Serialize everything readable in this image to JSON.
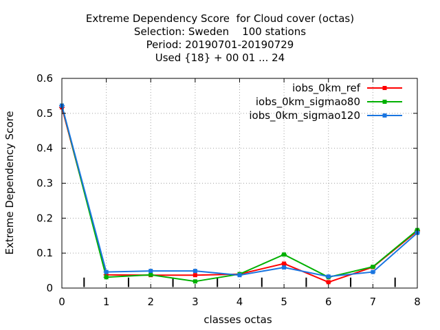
{
  "chart_data": {
    "type": "line",
    "title_lines": [
      "Extreme Dependency Score  for Cloud cover (octas)",
      "Selection: Sweden    100 stations",
      "Period: 20190701-20190729",
      "Used {18} + 00 01 ... 24"
    ],
    "xlabel": "classes octas",
    "ylabel": "Extreme Dependency Score",
    "xlim": [
      0,
      8
    ],
    "ylim": [
      0,
      0.6
    ],
    "xticks": [
      "0",
      "1",
      "2",
      "3",
      "4",
      "5",
      "6",
      "7",
      "8"
    ],
    "yticks": [
      "0",
      "0.1",
      "0.2",
      "0.3",
      "0.4",
      "0.5",
      "0.6"
    ],
    "grid": true,
    "legend_position": "top-right",
    "x": [
      0,
      1,
      2,
      3,
      4,
      5,
      6,
      7,
      8
    ],
    "series": [
      {
        "name": "iobs_0km_ref",
        "color": "#ff0000",
        "values": [
          0.517,
          0.038,
          0.037,
          0.037,
          0.04,
          0.07,
          0.017,
          0.06,
          0.163
        ]
      },
      {
        "name": "iobs_0km_sigmao80",
        "color": "#00b000",
        "values": [
          0.522,
          0.031,
          0.038,
          0.019,
          0.04,
          0.096,
          0.031,
          0.061,
          0.166
        ]
      },
      {
        "name": "iobs_0km_sigmao120",
        "color": "#1a75e0",
        "values": [
          0.522,
          0.046,
          0.049,
          0.049,
          0.037,
          0.059,
          0.033,
          0.046,
          0.158
        ]
      }
    ],
    "half_class_markers": [
      0.5,
      1.5,
      2.5,
      3.5,
      4.5,
      5.5,
      6.5,
      7.5
    ]
  }
}
